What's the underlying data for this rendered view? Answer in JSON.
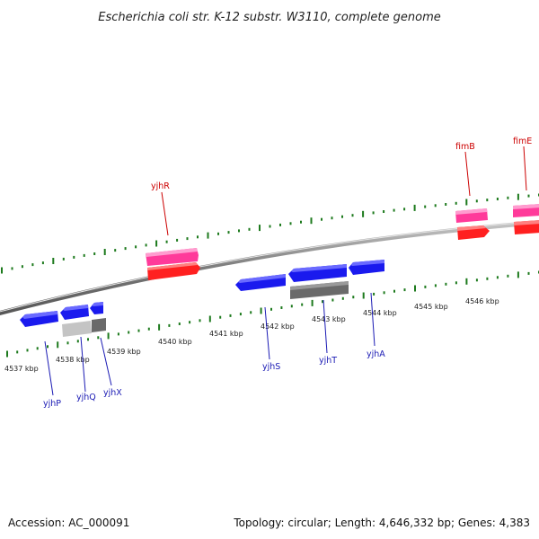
{
  "title": "Escherichia coli str. K-12 substr. W3110, complete genome",
  "footer": {
    "accession": "Accession: AC_000091",
    "summary": "Topology: circular; Length: 4,646,332 bp; Genes: 4,383"
  },
  "colors": {
    "forward_gene": "#ff2020",
    "forward_cds": "#ff3a9a",
    "reverse_gene": "#1a1aee",
    "reverse_cds_dark": "#6a6a6a",
    "reverse_cds_light": "#c4c4c4",
    "tick": "#1d7a1d",
    "top_label": "#cc0000",
    "bottom_label": "#1a1ab4",
    "backbone": "#8a8a8a"
  },
  "kbp_labels": [
    "4537 kbp",
    "4538 kbp",
    "4539 kbp",
    "4540 kbp",
    "4541 kbp",
    "4542 kbp",
    "4543 kbp",
    "4544 kbp",
    "4545 kbp",
    "4546 kbp"
  ],
  "genes_top": [
    {
      "name": "yjhR"
    },
    {
      "name": "fimB"
    },
    {
      "name": "fimE"
    }
  ],
  "genes_bottom": [
    {
      "name": "yjhP"
    },
    {
      "name": "yjhQ"
    },
    {
      "name": "yjhX"
    },
    {
      "name": "yjhS"
    },
    {
      "name": "yjhT"
    },
    {
      "name": "yjhA"
    }
  ]
}
